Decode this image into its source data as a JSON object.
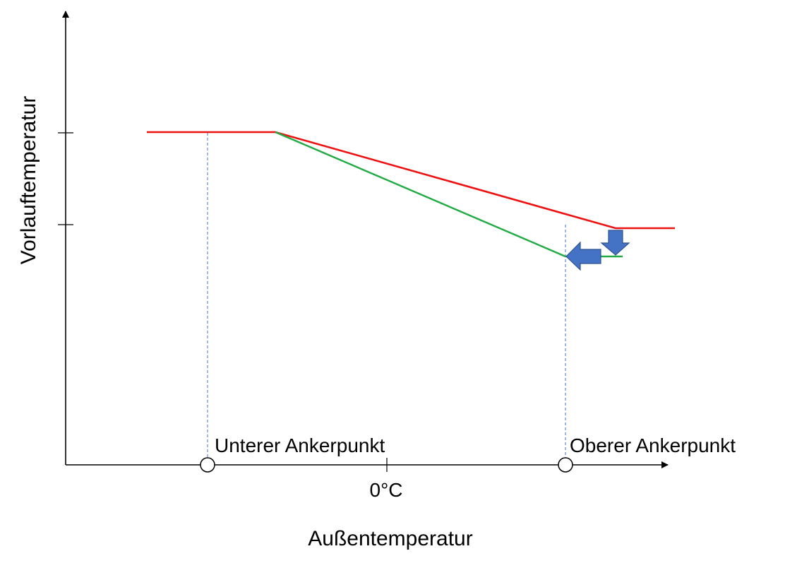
{
  "diagram": {
    "y_axis_label": "Vorlauftemperatur",
    "x_axis_label": "Außentemperatur",
    "zero_label": "0°C",
    "lower_anchor_label": "Unterer Ankerpunkt",
    "upper_anchor_label": "Oberer Ankerpunkt"
  },
  "colors": {
    "original_curve": "#ee1111",
    "adjusted_curve": "#22aa44",
    "guide_lines": "#4472c4",
    "arrows_fill": "#4472c4",
    "arrows_stroke": "#2f528f",
    "axes": "#000000"
  },
  "icons": {
    "down_arrow": "arrow-down-icon",
    "left_arrow": "arrow-left-icon"
  }
}
